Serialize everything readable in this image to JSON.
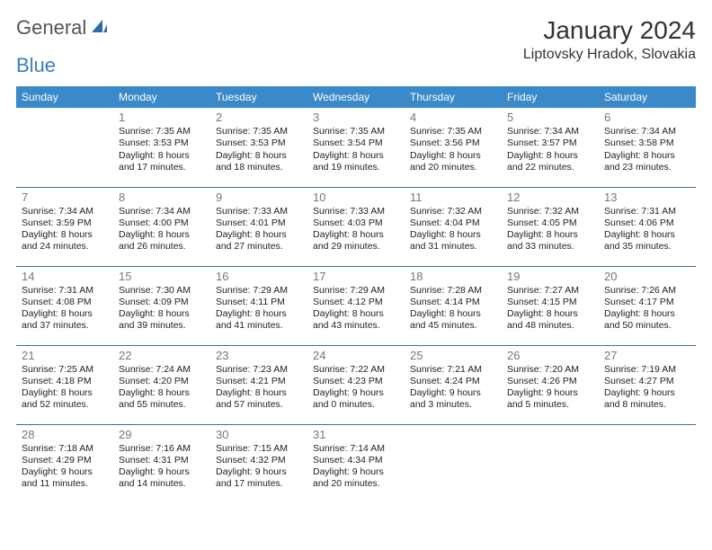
{
  "brand": {
    "part1": "General",
    "part2": "Blue"
  },
  "title": "January 2024",
  "subtitle": "Liptovsky Hradok, Slovakia",
  "colors": {
    "header_bg": "#3a89c9",
    "header_text": "#ffffff",
    "border": "#3a6fa8",
    "daynum": "#777777",
    "text": "#222222",
    "brand_gray": "#555555",
    "brand_blue": "#3a7fc4",
    "background": "#ffffff"
  },
  "day_headers": [
    "Sunday",
    "Monday",
    "Tuesday",
    "Wednesday",
    "Thursday",
    "Friday",
    "Saturday"
  ],
  "weeks": [
    [
      null,
      {
        "n": "1",
        "sr": "7:35 AM",
        "ss": "3:53 PM",
        "dl": "8 hours and 17 minutes."
      },
      {
        "n": "2",
        "sr": "7:35 AM",
        "ss": "3:53 PM",
        "dl": "8 hours and 18 minutes."
      },
      {
        "n": "3",
        "sr": "7:35 AM",
        "ss": "3:54 PM",
        "dl": "8 hours and 19 minutes."
      },
      {
        "n": "4",
        "sr": "7:35 AM",
        "ss": "3:56 PM",
        "dl": "8 hours and 20 minutes."
      },
      {
        "n": "5",
        "sr": "7:34 AM",
        "ss": "3:57 PM",
        "dl": "8 hours and 22 minutes."
      },
      {
        "n": "6",
        "sr": "7:34 AM",
        "ss": "3:58 PM",
        "dl": "8 hours and 23 minutes."
      }
    ],
    [
      {
        "n": "7",
        "sr": "7:34 AM",
        "ss": "3:59 PM",
        "dl": "8 hours and 24 minutes."
      },
      {
        "n": "8",
        "sr": "7:34 AM",
        "ss": "4:00 PM",
        "dl": "8 hours and 26 minutes."
      },
      {
        "n": "9",
        "sr": "7:33 AM",
        "ss": "4:01 PM",
        "dl": "8 hours and 27 minutes."
      },
      {
        "n": "10",
        "sr": "7:33 AM",
        "ss": "4:03 PM",
        "dl": "8 hours and 29 minutes."
      },
      {
        "n": "11",
        "sr": "7:32 AM",
        "ss": "4:04 PM",
        "dl": "8 hours and 31 minutes."
      },
      {
        "n": "12",
        "sr": "7:32 AM",
        "ss": "4:05 PM",
        "dl": "8 hours and 33 minutes."
      },
      {
        "n": "13",
        "sr": "7:31 AM",
        "ss": "4:06 PM",
        "dl": "8 hours and 35 minutes."
      }
    ],
    [
      {
        "n": "14",
        "sr": "7:31 AM",
        "ss": "4:08 PM",
        "dl": "8 hours and 37 minutes."
      },
      {
        "n": "15",
        "sr": "7:30 AM",
        "ss": "4:09 PM",
        "dl": "8 hours and 39 minutes."
      },
      {
        "n": "16",
        "sr": "7:29 AM",
        "ss": "4:11 PM",
        "dl": "8 hours and 41 minutes."
      },
      {
        "n": "17",
        "sr": "7:29 AM",
        "ss": "4:12 PM",
        "dl": "8 hours and 43 minutes."
      },
      {
        "n": "18",
        "sr": "7:28 AM",
        "ss": "4:14 PM",
        "dl": "8 hours and 45 minutes."
      },
      {
        "n": "19",
        "sr": "7:27 AM",
        "ss": "4:15 PM",
        "dl": "8 hours and 48 minutes."
      },
      {
        "n": "20",
        "sr": "7:26 AM",
        "ss": "4:17 PM",
        "dl": "8 hours and 50 minutes."
      }
    ],
    [
      {
        "n": "21",
        "sr": "7:25 AM",
        "ss": "4:18 PM",
        "dl": "8 hours and 52 minutes."
      },
      {
        "n": "22",
        "sr": "7:24 AM",
        "ss": "4:20 PM",
        "dl": "8 hours and 55 minutes."
      },
      {
        "n": "23",
        "sr": "7:23 AM",
        "ss": "4:21 PM",
        "dl": "8 hours and 57 minutes."
      },
      {
        "n": "24",
        "sr": "7:22 AM",
        "ss": "4:23 PM",
        "dl": "9 hours and 0 minutes."
      },
      {
        "n": "25",
        "sr": "7:21 AM",
        "ss": "4:24 PM",
        "dl": "9 hours and 3 minutes."
      },
      {
        "n": "26",
        "sr": "7:20 AM",
        "ss": "4:26 PM",
        "dl": "9 hours and 5 minutes."
      },
      {
        "n": "27",
        "sr": "7:19 AM",
        "ss": "4:27 PM",
        "dl": "9 hours and 8 minutes."
      }
    ],
    [
      {
        "n": "28",
        "sr": "7:18 AM",
        "ss": "4:29 PM",
        "dl": "9 hours and 11 minutes."
      },
      {
        "n": "29",
        "sr": "7:16 AM",
        "ss": "4:31 PM",
        "dl": "9 hours and 14 minutes."
      },
      {
        "n": "30",
        "sr": "7:15 AM",
        "ss": "4:32 PM",
        "dl": "9 hours and 17 minutes."
      },
      {
        "n": "31",
        "sr": "7:14 AM",
        "ss": "4:34 PM",
        "dl": "9 hours and 20 minutes."
      },
      null,
      null,
      null
    ]
  ],
  "labels": {
    "sunrise": "Sunrise: ",
    "sunset": "Sunset: ",
    "daylight": "Daylight: "
  }
}
